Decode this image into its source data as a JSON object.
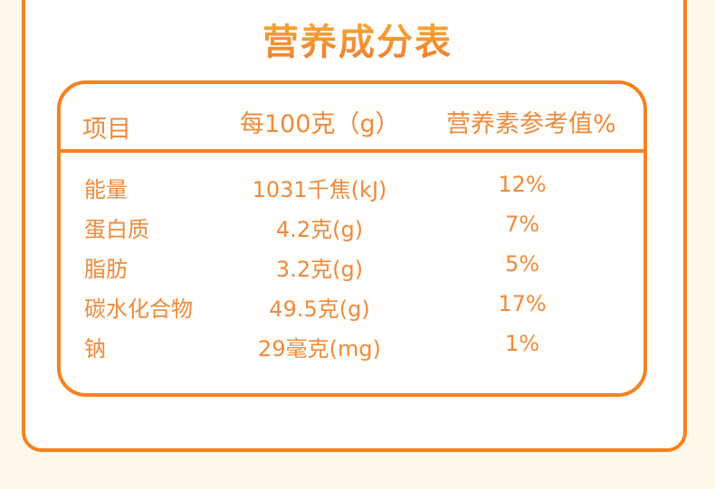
{
  "title": "营养成分表",
  "headers": [
    "项目",
    "每100克（g）",
    "营养素参考值%"
  ],
  "rows": [
    [
      "能量",
      "1031千焦(kJ)",
      "12%"
    ],
    [
      "蛋白质",
      "4.2克(g)",
      "7%"
    ],
    [
      "脂肪",
      "3.2克(g)",
      "5%"
    ],
    [
      "碳水化合物",
      "49.5克(g)",
      "17%"
    ],
    [
      "钠",
      "29毫克(mg)",
      "1%"
    ]
  ],
  "colors": {
    "border": "#f5821f",
    "text": "#ef8a3a",
    "background": "#fdf8ea"
  }
}
